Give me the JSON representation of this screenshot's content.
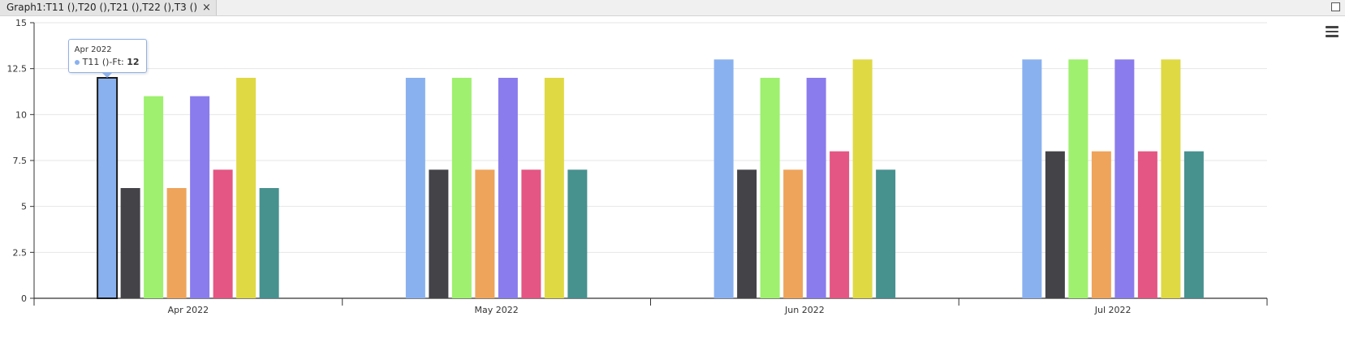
{
  "tab": {
    "title": "Graph1:T11 (),T20 (),T21 (),T22 (),T3 ()",
    "close_label": "×"
  },
  "tooltip": {
    "date": "Apr 2022",
    "label": "T11 ()-Ft: ",
    "value": "12",
    "color": "#8ab1ef"
  },
  "chart_data": {
    "type": "bar",
    "categories": [
      "Apr 2022",
      "May 2022",
      "Jun 2022",
      "Jul 2022"
    ],
    "ylim": [
      0,
      15
    ],
    "yticks": [
      0,
      2.5,
      5,
      7.5,
      10,
      12.5,
      15
    ],
    "ytick_labels": [
      "0",
      "2.5",
      "5",
      "7.5",
      "10",
      "12.5",
      "15"
    ],
    "grid": true,
    "series": [
      {
        "color": "#8ab1ef",
        "values": [
          12,
          12,
          13,
          13
        ]
      },
      {
        "color": "#434348",
        "values": [
          6,
          7,
          7,
          8
        ]
      },
      {
        "color": "#9ef06e",
        "values": [
          11,
          12,
          12,
          13
        ]
      },
      {
        "color": "#eea45b",
        "values": [
          6,
          7,
          7,
          8
        ]
      },
      {
        "color": "#8a7cec",
        "values": [
          11,
          12,
          12,
          13
        ]
      },
      {
        "color": "#e45683",
        "values": [
          7,
          7,
          8,
          8
        ]
      },
      {
        "color": "#dfd944",
        "values": [
          12,
          12,
          13,
          13
        ]
      },
      {
        "color": "#47918f",
        "values": [
          6,
          7,
          7,
          8
        ]
      }
    ]
  }
}
